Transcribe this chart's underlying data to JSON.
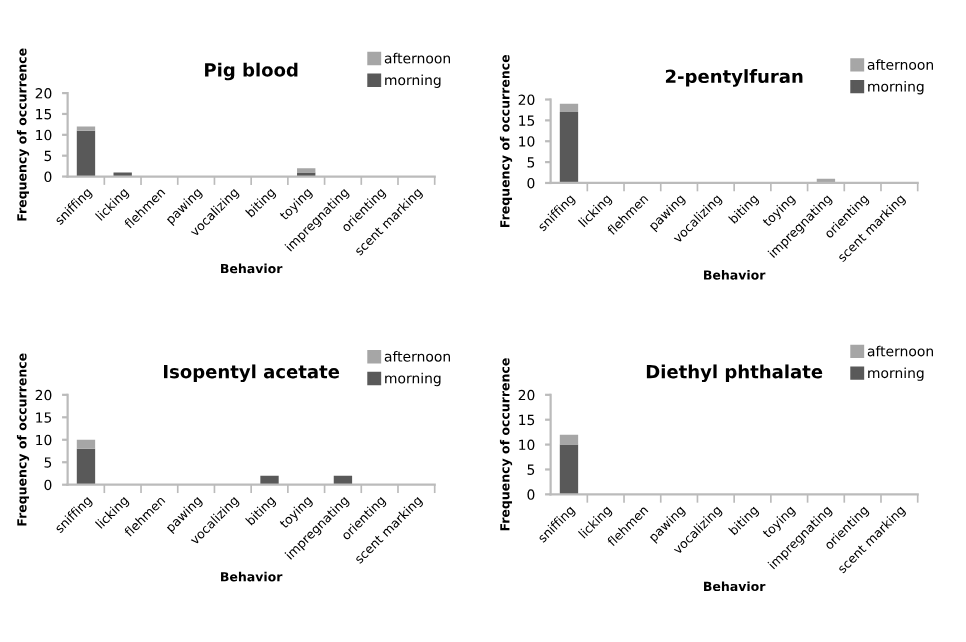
{
  "chart_data": [
    {
      "type": "bar",
      "title": "Pig blood",
      "xlabel": "Behavior",
      "ylabel": "Frequency of occurrence",
      "stacked": true,
      "legend": "top right",
      "grid": false,
      "categories": [
        "sniffing",
        "licking",
        "flehmen",
        "pawing",
        "vocalizing",
        "biting",
        "toying",
        "impregnating",
        "orienting",
        "scent marking"
      ],
      "series": [
        {
          "name": "morning",
          "color": "#595959",
          "values": [
            11,
            1,
            0,
            0,
            0,
            0,
            1,
            0,
            0,
            0
          ]
        },
        {
          "name": "afternoon",
          "color": "#a6a6a6",
          "values": [
            1,
            0,
            0,
            0,
            0,
            0,
            1,
            0,
            0,
            0
          ]
        }
      ],
      "ylim": [
        0,
        20
      ],
      "yticks": [
        0,
        5,
        10,
        15,
        20
      ]
    },
    {
      "type": "bar",
      "title": "2-pentylfuran",
      "xlabel": "Behavior",
      "ylabel": "Frequency of occurrence",
      "stacked": true,
      "legend": "top right",
      "grid": false,
      "categories": [
        "sniffing",
        "licking",
        "flehmen",
        "pawing",
        "vocalizing",
        "biting",
        "toying",
        "impregnating",
        "orienting",
        "scent marking"
      ],
      "series": [
        {
          "name": "morning",
          "color": "#595959",
          "values": [
            17,
            0,
            0,
            0,
            0,
            0,
            0,
            0,
            0,
            0
          ]
        },
        {
          "name": "afternoon",
          "color": "#a6a6a6",
          "values": [
            2,
            0,
            0,
            0,
            0,
            0,
            0,
            1,
            0,
            0
          ]
        }
      ],
      "ylim": [
        0,
        20
      ],
      "yticks": [
        0,
        5,
        10,
        15,
        20
      ]
    },
    {
      "type": "bar",
      "title": "Isopentyl acetate",
      "xlabel": "Behavior",
      "ylabel": "Frequency of occurrence",
      "stacked": true,
      "legend": "top right",
      "grid": false,
      "categories": [
        "sniffing",
        "licking",
        "flehmen",
        "pawing",
        "vocalizing",
        "biting",
        "toying",
        "impregnating",
        "orienting",
        "scent marking"
      ],
      "series": [
        {
          "name": "morning",
          "color": "#595959",
          "values": [
            8,
            0,
            0,
            0,
            0,
            2,
            0,
            2,
            0,
            0
          ]
        },
        {
          "name": "afternoon",
          "color": "#a6a6a6",
          "values": [
            2,
            0,
            0,
            0,
            0,
            0,
            0,
            0,
            0,
            0
          ]
        }
      ],
      "ylim": [
        0,
        20
      ],
      "yticks": [
        0,
        5,
        10,
        15,
        20
      ]
    },
    {
      "type": "bar",
      "title": "Diethyl phthalate",
      "xlabel": "Behavior",
      "ylabel": "Frequency of occurrence",
      "stacked": true,
      "legend": "top right",
      "grid": false,
      "categories": [
        "sniffing",
        "licking",
        "flehmen",
        "pawing",
        "vocalizing",
        "biting",
        "toying",
        "impregnating",
        "orienting",
        "scent marking"
      ],
      "series": [
        {
          "name": "morning",
          "color": "#595959",
          "values": [
            10,
            0,
            0,
            0,
            0,
            0,
            0,
            0,
            0,
            0
          ]
        },
        {
          "name": "afternoon",
          "color": "#a6a6a6",
          "values": [
            2,
            0,
            0,
            0,
            0,
            0,
            0,
            0,
            0,
            0
          ]
        }
      ],
      "ylim": [
        0,
        20
      ],
      "yticks": [
        0,
        5,
        10,
        15,
        20
      ]
    }
  ]
}
